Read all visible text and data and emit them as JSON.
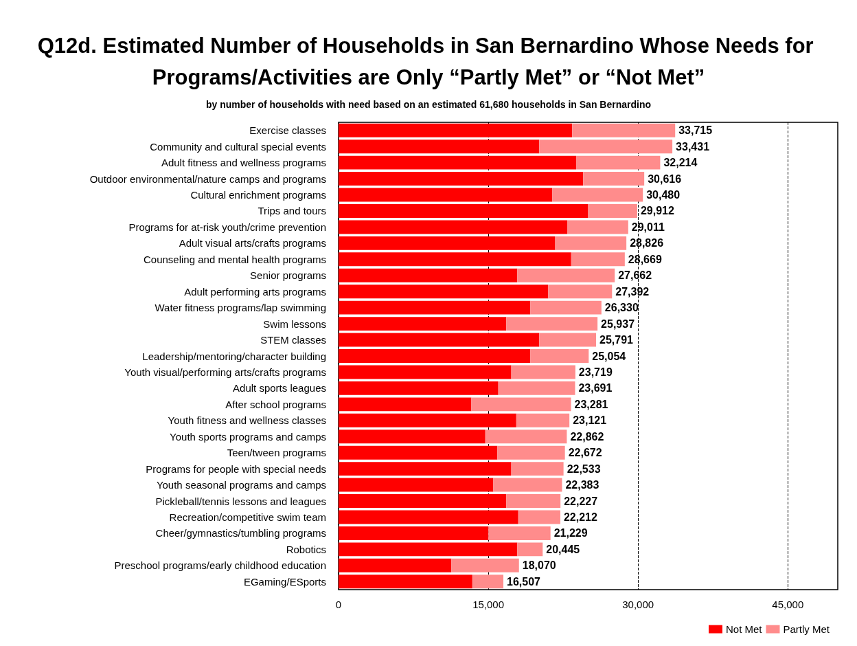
{
  "chart_data": {
    "type": "bar",
    "orientation": "horizontal",
    "stacked": true,
    "title": "Q12d. Estimated Number of Households in San Bernardino Whose Needs for Programs/Activities are Only “Partly Met” or “Not Met”",
    "subtitle": "by number of households with need based on an estimated 61,680 households in San Bernardino",
    "categories": [
      "Exercise classes",
      "Community and cultural special events",
      "Adult fitness and wellness programs",
      "Outdoor environmental/nature camps and programs",
      "Cultural enrichment programs",
      "Trips and tours",
      "Programs for at-risk youth/crime prevention",
      "Adult visual arts/crafts programs",
      "Counseling and mental health programs",
      "Senior programs",
      "Adult performing arts programs",
      "Water fitness programs/lap swimming",
      "Swim lessons",
      "STEM classes",
      "Leadership/mentoring/character building",
      "Youth visual/performing arts/crafts programs",
      "Adult sports leagues",
      "After school programs",
      "Youth fitness and wellness classes",
      "Youth sports programs and camps",
      "Teen/tween programs",
      "Programs for people with special needs",
      "Youth seasonal programs and camps",
      "Pickleball/tennis lessons and leagues",
      "Recreation/competitive swim team",
      "Cheer/gymnastics/tumbling programs",
      "Robotics",
      "Preschool programs/early childhood education",
      "EGaming/ESports"
    ],
    "series": [
      {
        "name": "Not Met",
        "color": "#ff0000",
        "values": [
          23400,
          20100,
          23800,
          24500,
          21400,
          25000,
          22900,
          21700,
          23300,
          17900,
          21000,
          19200,
          16800,
          20100,
          19200,
          17300,
          16000,
          13300,
          17800,
          14700,
          15900,
          17300,
          15500,
          16800,
          18000,
          15000,
          17900,
          11300,
          13400
        ]
      },
      {
        "name": "Partly Met",
        "color": "#ff8c8c",
        "values": [
          10315,
          13331,
          8414,
          6116,
          9080,
          4912,
          6111,
          7126,
          5369,
          9762,
          6392,
          7130,
          9137,
          5691,
          5854,
          6419,
          7691,
          9981,
          5321,
          8162,
          6772,
          5233,
          6883,
          5427,
          4212,
          6229,
          2545,
          6770,
          3107
        ]
      }
    ],
    "totals": [
      "33,715",
      "33,431",
      "32,214",
      "30,616",
      "30,480",
      "29,912",
      "29,011",
      "28,826",
      "28,669",
      "27,662",
      "27,392",
      "26,330",
      "25,937",
      "25,791",
      "25,054",
      "23,719",
      "23,691",
      "23,281",
      "23,121",
      "22,862",
      "22,672",
      "22,533",
      "22,383",
      "22,227",
      "22,212",
      "21,229",
      "20,445",
      "18,070",
      "16,507"
    ],
    "xlim": [
      0,
      50000
    ],
    "xticks": [
      0,
      {
        "value": 15000,
        "label": "15,000"
      },
      {
        "value": 30000,
        "label": "30,000"
      },
      {
        "value": 45000,
        "label": "45,000"
      }
    ],
    "grid": "x",
    "legend": "bottom right"
  }
}
